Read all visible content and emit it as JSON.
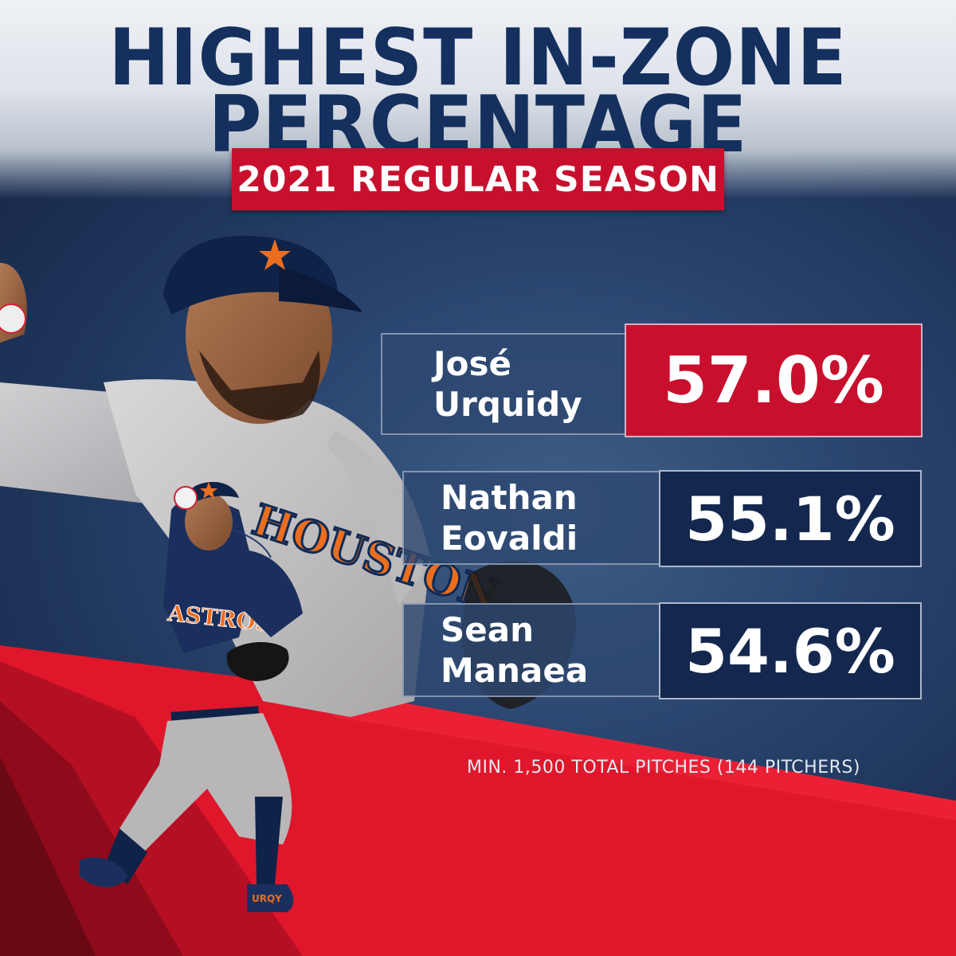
{
  "header": {
    "title_line1": "HIGHEST IN-ZONE",
    "title_line2": "PERCENTAGE",
    "subtitle": "2021 REGULAR SEASON"
  },
  "leaders": [
    {
      "first": "José",
      "last": "Urquidy",
      "value": "57.0%"
    },
    {
      "first": "Nathan",
      "last": "Eovaldi",
      "value": "55.1%"
    },
    {
      "first": "Sean",
      "last": "Manaea",
      "value": "54.6%"
    }
  ],
  "footnote": "MIN. 1,500 TOTAL PITCHES (144 PITCHERS)",
  "player_art": {
    "jersey_text": "HOUSTON",
    "front_text": "ASTROS",
    "shoe_text": "URQY"
  },
  "colors": {
    "navy": "#15305e",
    "red": "#c8102e",
    "background": "#2b4670",
    "stat_dark": "#14284f",
    "astros_orange": "#eb6e1f"
  }
}
